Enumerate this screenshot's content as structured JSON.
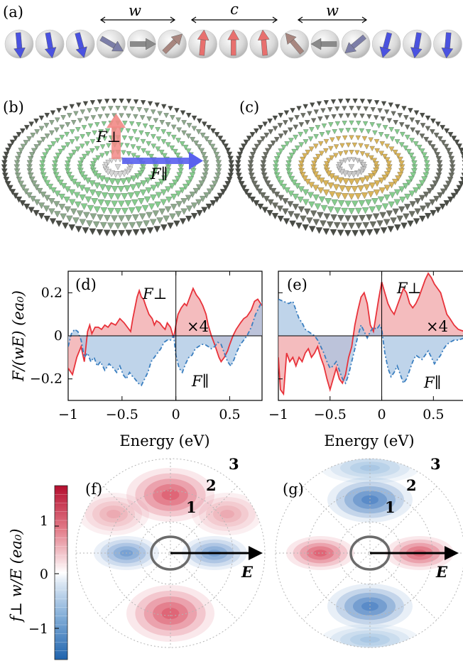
{
  "panels": {
    "a": {
      "label": "(a)",
      "dim_w1": "w",
      "dim_c": "c",
      "dim_w2": "w"
    },
    "b": {
      "label": "(b)",
      "f_perp": "F⊥",
      "f_par": "F∥"
    },
    "c": {
      "label": "(c)"
    },
    "f": {
      "label": "(f)",
      "ring1": "1",
      "ring2": "2",
      "ring3": "3",
      "field": "E"
    },
    "g": {
      "label": "(g)",
      "ring1": "1",
      "ring2": "2",
      "ring3": "3",
      "field": "E"
    }
  },
  "colorbar": {
    "label": "f⊥ w/E (ea₀)",
    "ticks": [
      "1",
      "0",
      "−1"
    ],
    "range": [
      -1.5,
      1.5
    ]
  },
  "colors": {
    "f_perp": "#e8323a",
    "f_perp_fill": "#f0a5a8",
    "f_par": "#3b7fc0",
    "f_par_fill": "#a9c6e3",
    "spin_up": "#e8706e",
    "spin_down": "#4a52e0",
    "spin_inplane": "#8a8a8a",
    "disk_green": "#86cc8e",
    "disk_dark": "#5a5e55",
    "disk_gold": "#d9b45a"
  },
  "chart_data": [
    {
      "panel": "(d)",
      "type": "area",
      "xlabel": "Energy (eV)",
      "ylabel": "F/(wE) (ea₀)",
      "xlim": [
        -1.0,
        0.8
      ],
      "ylim": [
        -0.3,
        0.3
      ],
      "xticks": [
        "−1",
        "−0.5",
        "0",
        "0.5"
      ],
      "yticks": [
        "0.2",
        "0",
        "−0.2"
      ],
      "annotation": "×4",
      "series": [
        {
          "name": "F⊥",
          "x": [
            -1.0,
            -0.96,
            -0.92,
            -0.88,
            -0.85,
            -0.82,
            -0.8,
            -0.78,
            -0.75,
            -0.72,
            -0.69,
            -0.66,
            -0.63,
            -0.6,
            -0.56,
            -0.52,
            -0.48,
            -0.45,
            -0.42,
            -0.4,
            -0.38,
            -0.36,
            -0.34,
            -0.32,
            -0.3,
            -0.28,
            -0.25,
            -0.22,
            -0.2,
            -0.18,
            -0.15,
            -0.12,
            -0.1,
            -0.08,
            -0.05,
            -0.02,
            0.0,
            0.02,
            0.05,
            0.08,
            0.1,
            0.13,
            0.16,
            0.19,
            0.22,
            0.25,
            0.28,
            0.3,
            0.33,
            0.36,
            0.38,
            0.4,
            0.42,
            0.45,
            0.48,
            0.5,
            0.53,
            0.56,
            0.6,
            0.63,
            0.66,
            0.7,
            0.73,
            0.76,
            0.8
          ],
          "y": [
            -0.15,
            -0.18,
            -0.1,
            -0.05,
            -0.12,
            0.02,
            0.05,
            0.01,
            0.04,
            0.04,
            0.03,
            0.05,
            0.04,
            0.06,
            0.05,
            0.08,
            0.06,
            0.04,
            0.02,
            0.08,
            0.13,
            0.18,
            0.21,
            0.18,
            0.17,
            0.14,
            0.1,
            0.08,
            0.05,
            0.07,
            0.06,
            0.04,
            0.03,
            0.06,
            0.04,
            -0.01,
            0.05,
            0.1,
            0.13,
            0.15,
            0.14,
            0.18,
            0.22,
            0.19,
            0.17,
            0.14,
            0.1,
            0.05,
            0.0,
            -0.04,
            -0.07,
            -0.1,
            -0.12,
            -0.1,
            -0.07,
            -0.04,
            0.0,
            0.03,
            0.06,
            0.08,
            0.09,
            0.12,
            0.16,
            0.17,
            0.14
          ]
        },
        {
          "name": "F∥",
          "x": [
            -1.0,
            -0.97,
            -0.94,
            -0.91,
            -0.88,
            -0.85,
            -0.82,
            -0.79,
            -0.76,
            -0.73,
            -0.7,
            -0.66,
            -0.62,
            -0.58,
            -0.55,
            -0.52,
            -0.49,
            -0.46,
            -0.43,
            -0.4,
            -0.38,
            -0.35,
            -0.32,
            -0.29,
            -0.26,
            -0.23,
            -0.2,
            -0.17,
            -0.14,
            -0.11,
            -0.08,
            -0.05,
            -0.02,
            0.0,
            0.03,
            0.06,
            0.09,
            0.12,
            0.15,
            0.18,
            0.21,
            0.24,
            0.27,
            0.3,
            0.33,
            0.36,
            0.39,
            0.42,
            0.45,
            0.48,
            0.51,
            0.54,
            0.57,
            0.6,
            0.63,
            0.66,
            0.7,
            0.74,
            0.8
          ],
          "y": [
            -0.05,
            0.01,
            0.03,
            0.02,
            -0.02,
            -0.1,
            -0.08,
            -0.12,
            -0.1,
            -0.14,
            -0.12,
            -0.16,
            -0.13,
            -0.15,
            -0.17,
            -0.14,
            -0.18,
            -0.2,
            -0.17,
            -0.19,
            -0.2,
            -0.22,
            -0.23,
            -0.2,
            -0.17,
            -0.12,
            -0.1,
            -0.08,
            -0.06,
            -0.03,
            -0.02,
            -0.02,
            0.0,
            -0.09,
            -0.15,
            -0.17,
            -0.13,
            -0.1,
            -0.09,
            -0.06,
            -0.05,
            -0.04,
            -0.04,
            -0.05,
            -0.06,
            -0.05,
            -0.03,
            -0.04,
            -0.08,
            -0.12,
            -0.14,
            -0.11,
            -0.07,
            -0.04,
            -0.02,
            0.0,
            0.04,
            0.1,
            0.16
          ]
        }
      ]
    },
    {
      "panel": "(e)",
      "type": "area",
      "xlabel": "Energy (eV)",
      "ylabel": "",
      "xlim": [
        -1.0,
        0.8
      ],
      "ylim": [
        -0.3,
        0.3
      ],
      "xticks": [
        "−1",
        "−0.5",
        "0",
        "0.5"
      ],
      "annotation": "×4",
      "series": [
        {
          "name": "F⊥",
          "x": [
            -1.0,
            -0.98,
            -0.95,
            -0.92,
            -0.89,
            -0.86,
            -0.83,
            -0.8,
            -0.77,
            -0.74,
            -0.71,
            -0.68,
            -0.65,
            -0.62,
            -0.59,
            -0.56,
            -0.53,
            -0.5,
            -0.47,
            -0.44,
            -0.41,
            -0.38,
            -0.35,
            -0.32,
            -0.29,
            -0.26,
            -0.23,
            -0.2,
            -0.17,
            -0.14,
            -0.11,
            -0.08,
            -0.06,
            -0.03,
            0.0,
            0.03,
            0.06,
            0.09,
            0.12,
            0.15,
            0.18,
            0.21,
            0.24,
            0.27,
            0.3,
            0.33,
            0.36,
            0.39,
            0.42,
            0.45,
            0.48,
            0.51,
            0.54,
            0.57,
            0.6,
            0.63,
            0.66,
            0.7,
            0.74,
            0.8
          ],
          "y": [
            -0.1,
            -0.25,
            -0.27,
            -0.08,
            -0.12,
            -0.1,
            -0.14,
            -0.1,
            -0.12,
            -0.08,
            -0.06,
            -0.1,
            -0.08,
            -0.05,
            -0.1,
            -0.14,
            -0.2,
            -0.25,
            -0.2,
            -0.15,
            -0.2,
            -0.22,
            -0.18,
            -0.1,
            -0.05,
            0.05,
            0.12,
            0.18,
            0.2,
            0.15,
            0.05,
            0.02,
            0.08,
            0.17,
            0.25,
            0.2,
            0.15,
            0.12,
            0.1,
            0.14,
            0.18,
            0.22,
            0.2,
            0.15,
            0.13,
            0.15,
            0.18,
            0.22,
            0.26,
            0.29,
            0.27,
            0.24,
            0.22,
            0.2,
            0.15,
            0.1,
            0.08,
            0.05,
            0.03,
            0.02
          ]
        },
        {
          "name": "F∥",
          "x": [
            -1.0,
            -0.95,
            -0.9,
            -0.86,
            -0.83,
            -0.8,
            -0.77,
            -0.74,
            -0.71,
            -0.68,
            -0.65,
            -0.62,
            -0.59,
            -0.56,
            -0.53,
            -0.5,
            -0.47,
            -0.44,
            -0.41,
            -0.38,
            -0.35,
            -0.32,
            -0.29,
            -0.26,
            -0.23,
            -0.2,
            -0.17,
            -0.14,
            -0.11,
            -0.08,
            -0.05,
            -0.02,
            0.0,
            0.03,
            0.06,
            0.09,
            0.12,
            0.15,
            0.18,
            0.21,
            0.24,
            0.27,
            0.3,
            0.33,
            0.36,
            0.39,
            0.42,
            0.45,
            0.48,
            0.51,
            0.54,
            0.57,
            0.6,
            0.63,
            0.66,
            0.7,
            0.74,
            0.8
          ],
          "y": [
            0.17,
            0.16,
            0.15,
            0.16,
            0.12,
            0.08,
            0.06,
            0.03,
            0.02,
            0.01,
            0.0,
            -0.02,
            -0.05,
            -0.08,
            -0.12,
            -0.15,
            -0.14,
            -0.12,
            -0.16,
            -0.2,
            -0.22,
            -0.18,
            -0.12,
            -0.06,
            0.0,
            0.05,
            0.02,
            -0.01,
            0.02,
            0.04,
            0.03,
            0.05,
            0.03,
            -0.08,
            -0.15,
            -0.19,
            -0.17,
            -0.14,
            -0.18,
            -0.22,
            -0.2,
            -0.16,
            -0.12,
            -0.09,
            -0.1,
            -0.11,
            -0.09,
            -0.07,
            -0.1,
            -0.13,
            -0.11,
            -0.09,
            -0.06,
            -0.04,
            -0.03,
            -0.02,
            -0.02,
            -0.01
          ]
        }
      ]
    }
  ]
}
